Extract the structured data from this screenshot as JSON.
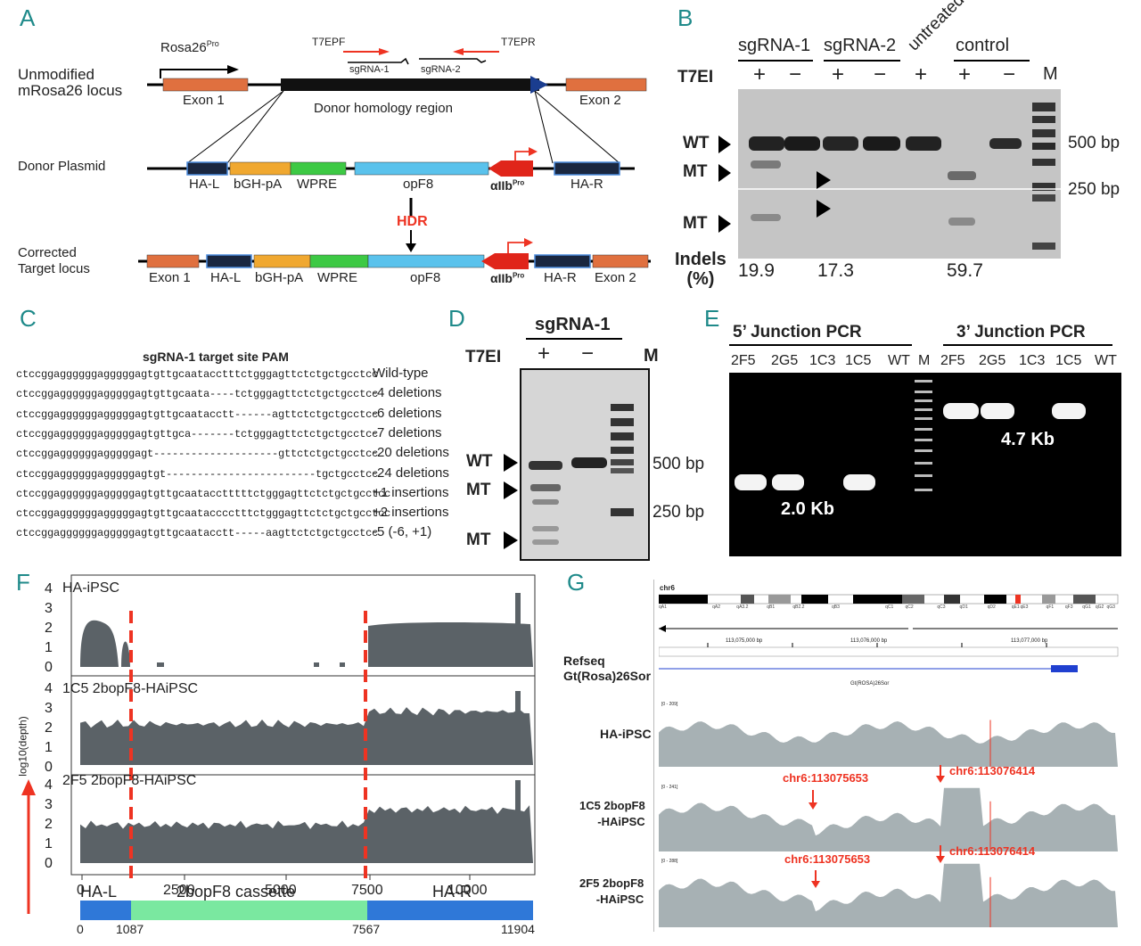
{
  "panels": {
    "A": {
      "letter": "A",
      "unmodified_label_1": "Unmodified",
      "unmodified_label_2": "mRosa26 locus",
      "rosa_pro": "Rosa26",
      "pro_sup": "Pro",
      "t7epf": "T7EPF",
      "t7epr": "T7EPR",
      "sgrna1": "sgRNA-1",
      "sgrna2": "sgRNA-2",
      "exon1": "Exon 1",
      "exon2": "Exon 2",
      "donor_region": "Donor homology region",
      "donor_plasmid": "Donor Plasmid",
      "ha_l": "HA-L",
      "bgh": "bGH-pA",
      "wpre": "WPRE",
      "opf8": "opF8",
      "aiib": "αIIb",
      "ha_r": "HA-R",
      "hdr": "HDR",
      "corrected_1": "Corrected",
      "corrected_2": "Target locus"
    },
    "B": {
      "letter": "B",
      "col_sg1": "sgRNA-1",
      "col_sg2": "sgRNA-2",
      "col_untreated": "untreated",
      "col_control": "control",
      "t7ei": "T7EI",
      "plus": "+",
      "minus": "−",
      "m": "M",
      "wt": "WT",
      "mt": "MT",
      "bp500": "500 bp",
      "bp250": "250 bp",
      "indels_1": "Indels",
      "indels_2": "(%)",
      "indel_values": [
        "19.9",
        "17.3",
        "59.7"
      ]
    },
    "C": {
      "letter": "C",
      "header": "sgRNA-1 target site PAM",
      "rows": [
        {
          "seq": "ctccggaggggggagggggagtgttgcaatacctttctgggagttctctgctgcctcc",
          "label": "Wild-type"
        },
        {
          "seq": "ctccggaggggggagggggagtgttgcaata----tctgggagttctctgctgcctcc",
          "label": "-4  deletions"
        },
        {
          "seq": "ctccggaggggggagggggagtgttgcaatacctt------agttctctgctgcctcc",
          "label": "-6  deletions"
        },
        {
          "seq": "ctccggaggggggagggggagtgttgca-------tctgggagttctctgctgcctcc",
          "label": "-7  deletions"
        },
        {
          "seq": "ctccggaggggggagggggagt--------------------gttctctgctgcctcc",
          "label": "-20  deletions"
        },
        {
          "seq": "ctccggaggggggagggggagtgt------------------------tgctgcctcc",
          "label": "-24  deletions"
        },
        {
          "seq": "ctccggaggggggagggggagtgttgcaatacctttttctgggagttctctgctgcctcc",
          "label": "+1  insertions"
        },
        {
          "seq": "ctccggaggggggagggggagtgttgcaatacccctttctgggagttctctgctgcctcc",
          "label": "+2  insertions"
        },
        {
          "seq": "ctccggaggggggagggggagtgttgcaatacctt-----aagttctctgctgcctcc",
          "label": "-5  (-6, +1)"
        }
      ]
    },
    "D": {
      "letter": "D",
      "title": "sgRNA-1",
      "t7ei": "T7EI",
      "plus": "+",
      "minus": "−",
      "m": "M",
      "wt": "WT",
      "mt": "MT",
      "bp500": "500 bp",
      "bp250": "250 bp"
    },
    "E": {
      "letter": "E",
      "title5": "5’ Junction PCR",
      "title3": "3’ Junction PCR",
      "lanes5": [
        "2F5",
        "2G5",
        "1C3",
        "1C5",
        "WT"
      ],
      "m": "M",
      "lanes3": [
        "2F5",
        "2G5",
        "1C3",
        "1C5",
        "WT"
      ],
      "size5": "2.0 Kb",
      "size3": "4.7 Kb"
    },
    "F": {
      "letter": "F",
      "tracks": [
        "HA-iPSC",
        "1C5 2bopF8-HAiPSC",
        "2F5 2bopF8-HAiPSC"
      ],
      "yticks": [
        "4",
        "3",
        "2",
        "1",
        "0"
      ],
      "ylabel": "log10(depth)",
      "xticks": [
        "0",
        "2500",
        "5000",
        "7500",
        "10000"
      ],
      "segments": [
        "HA-L",
        "2bopF8 cassette",
        "HA-R"
      ],
      "positions": [
        "0",
        "1087",
        "7567",
        "11904"
      ]
    },
    "G": {
      "letter": "G",
      "chr": "chr6",
      "bands": [
        "qA1",
        "qA2",
        "qA3.2",
        "qB1",
        "qB2.2",
        "qB3",
        "qC1",
        "qC2",
        "qC3",
        "qD1",
        "qD2",
        "qE1",
        "qE3",
        "qF1",
        "qF3",
        "qG1",
        "qG2",
        "qG3"
      ],
      "coords": [
        "113,075,000 bp",
        "113,076,000 bp",
        "113,077,000 bp"
      ],
      "refseq_1": "Refseq",
      "refseq_2": "Gt(Rosa)26Sor",
      "gene": "Gt(ROSA)26Sor",
      "track1": "HA-iPSC",
      "track2_1": "1C5 2bopF8",
      "track2_2": "-HAiPSC",
      "track3_1": "2F5 2bopF8",
      "track3_2": "-HAiPSC",
      "range1": "[0 - 209]",
      "range2": "[0 - 241]",
      "range3": "[0 - 288]",
      "site1": "chr6:113075653",
      "site2": "chr6:113076414"
    }
  }
}
